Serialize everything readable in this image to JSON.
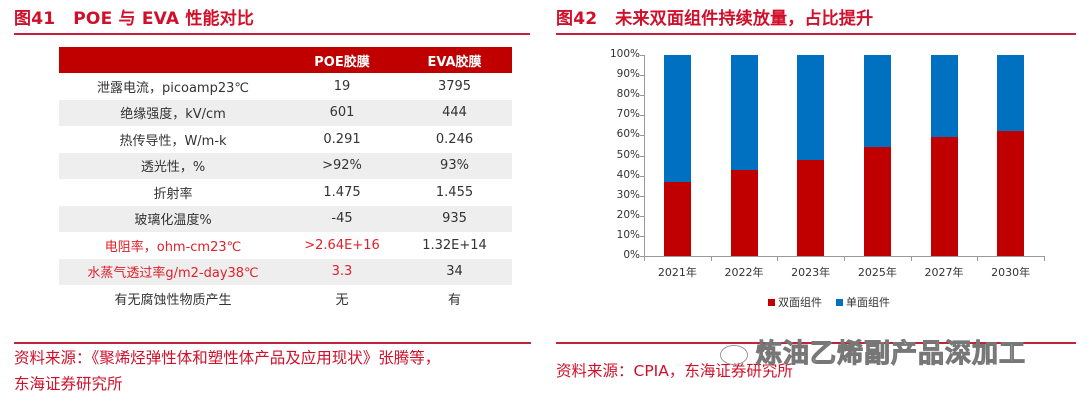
{
  "left": {
    "figure_number": "图41",
    "title": "POE 与 EVA 性能对比",
    "table": {
      "headers": [
        "",
        "POE胶膜",
        "EVA胶膜"
      ],
      "rows": [
        {
          "property": "泄露电流，picoamp23℃",
          "poe": "19",
          "eva": "3795",
          "highlight": false
        },
        {
          "property": "绝缘强度，kV/cm",
          "poe": "601",
          "eva": "444",
          "highlight": false
        },
        {
          "property": "热传导性，W/m-k",
          "poe": "0.291",
          "eva": "0.246",
          "highlight": false
        },
        {
          "property": "透光性，%",
          "poe": ">92%",
          "eva": "93%",
          "highlight": false
        },
        {
          "property": "折射率",
          "poe": "1.475",
          "eva": "1.455",
          "highlight": false
        },
        {
          "property": "玻璃化温度%",
          "poe": "-45",
          "eva": "935",
          "highlight": false
        },
        {
          "property": "电阻率，ohm-cm23℃",
          "poe": ">2.64E+16",
          "eva": "1.32E+14",
          "highlight": true
        },
        {
          "property": "水蒸气透过率g/m2-day38℃",
          "poe": "3.3",
          "eva": "34",
          "highlight": true
        },
        {
          "property": "有无腐蚀性物质产生",
          "poe": "无",
          "eva": "有",
          "highlight": false
        }
      ]
    },
    "source_line1": "资料来源：《聚烯烃弹性体和塑性体产品及应用现状》张腾等，",
    "source_line2": "东海证券研究所"
  },
  "right": {
    "figure_number": "图42",
    "title": "未来双面组件持续放量，占比提升",
    "source": "资料来源：CPIA，东海证券研究所",
    "watermark": "炼油乙烯副产品深加工"
  },
  "colors": {
    "title_red": "#d0102a",
    "header_red": "#c00000",
    "bifacial": "#c00000",
    "monofacial": "#0070c0"
  },
  "chart_data": {
    "type": "bar",
    "stacked": true,
    "percent": true,
    "title": "未来双面组件持续放量，占比提升",
    "categories": [
      "2021年",
      "2022年",
      "2023年",
      "2025年",
      "2027年",
      "2030年"
    ],
    "series": [
      {
        "name": "双面组件",
        "color": "#c00000",
        "values": [
          37,
          43,
          48,
          54,
          59,
          62
        ]
      },
      {
        "name": "单面组件",
        "color": "#0070c0",
        "values": [
          63,
          57,
          52,
          46,
          41,
          38
        ]
      }
    ],
    "yticks": [
      "0%",
      "10%",
      "20%",
      "30%",
      "40%",
      "50%",
      "60%",
      "70%",
      "80%",
      "90%",
      "100%"
    ],
    "ylim": [
      0,
      100
    ],
    "xlabel": "",
    "ylabel": "",
    "grid": false,
    "legend_position": "bottom"
  }
}
